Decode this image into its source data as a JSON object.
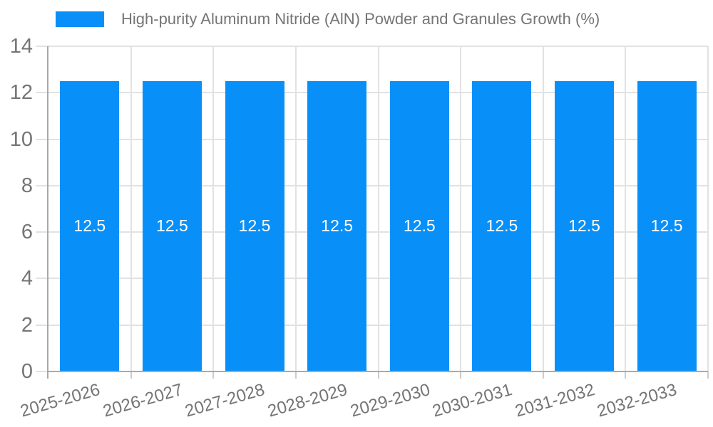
{
  "chart_data": {
    "type": "bar",
    "title": "High-purity Aluminum Nitride (AlN) Powder and Granules Growth (%)",
    "legend_label": "High-purity Aluminum Nitride (AlN) Powder and Granules Growth (%)",
    "legend_position": "top",
    "categories": [
      "2025-2026",
      "2026-2027",
      "2027-2028",
      "2028-2029",
      "2029-2030",
      "2030-2031",
      "2031-2032",
      "2032-2033"
    ],
    "values": [
      12.5,
      12.5,
      12.5,
      12.5,
      12.5,
      12.5,
      12.5,
      12.5
    ],
    "bar_value_labels": [
      "12.5",
      "12.5",
      "12.5",
      "12.5",
      "12.5",
      "12.5",
      "12.5",
      "12.5"
    ],
    "xlabel": "",
    "ylabel": "",
    "ylim": [
      0,
      14
    ],
    "yticks": [
      0,
      2,
      4,
      6,
      8,
      10,
      12,
      14
    ],
    "grid": true,
    "colors": {
      "bar": "#0890f8",
      "grid": "#e2e2e2",
      "tick": "#cccccc",
      "axis": "#a9a9a9",
      "label_text": "#757575",
      "value_text": "#ffffff",
      "background": "#ffffff"
    }
  }
}
